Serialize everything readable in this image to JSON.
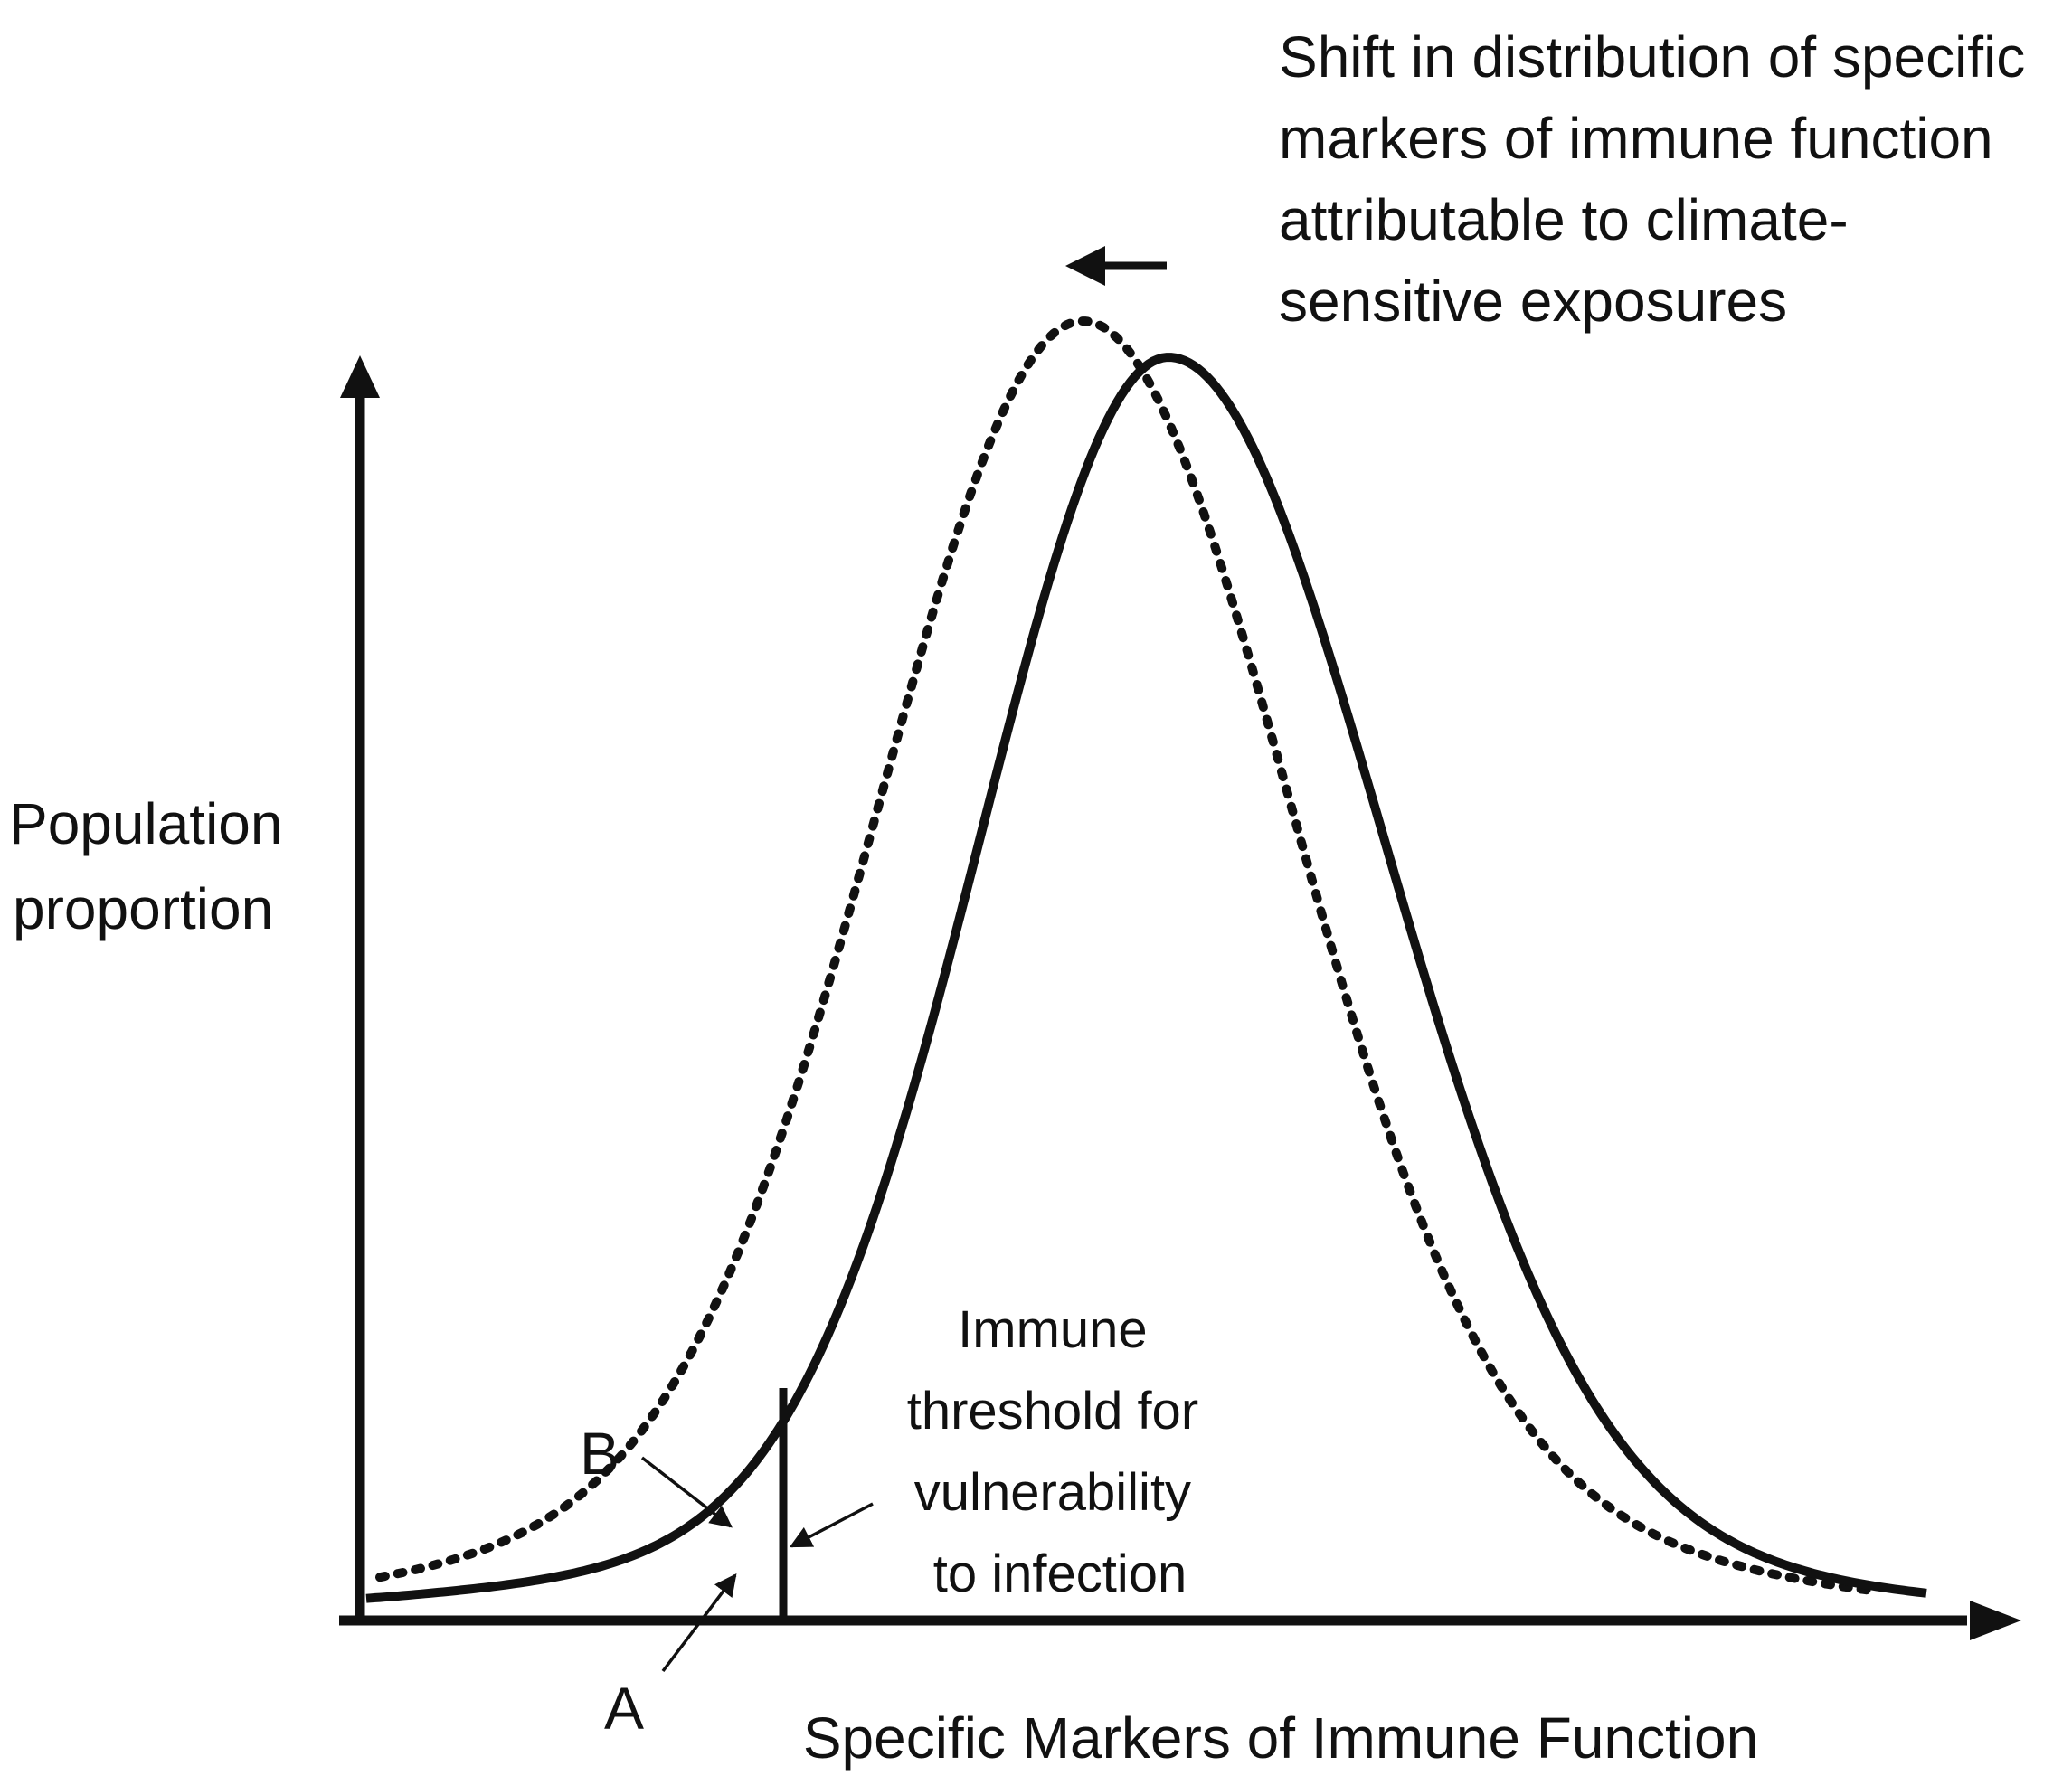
{
  "diagram": {
    "axes": {
      "y_label": [
        "Population",
        "proportion"
      ],
      "x_label": "Specific Markers of Immune Function"
    },
    "shift_note": [
      "Shift in distribution of specific",
      "markers of immune function",
      "attributable to climate-",
      "sensitive exposures"
    ],
    "threshold_note": [
      "Immune",
      "threshold for",
      "vulnerability",
      "to infection"
    ],
    "markers": {
      "a": "A",
      "b": "B"
    },
    "curves": [
      {
        "name": "baseline-distribution",
        "style": "solid"
      },
      {
        "name": "shifted-distribution",
        "style": "dotted"
      }
    ],
    "colors": {
      "ink": "#111111",
      "background": "#ffffff"
    }
  }
}
